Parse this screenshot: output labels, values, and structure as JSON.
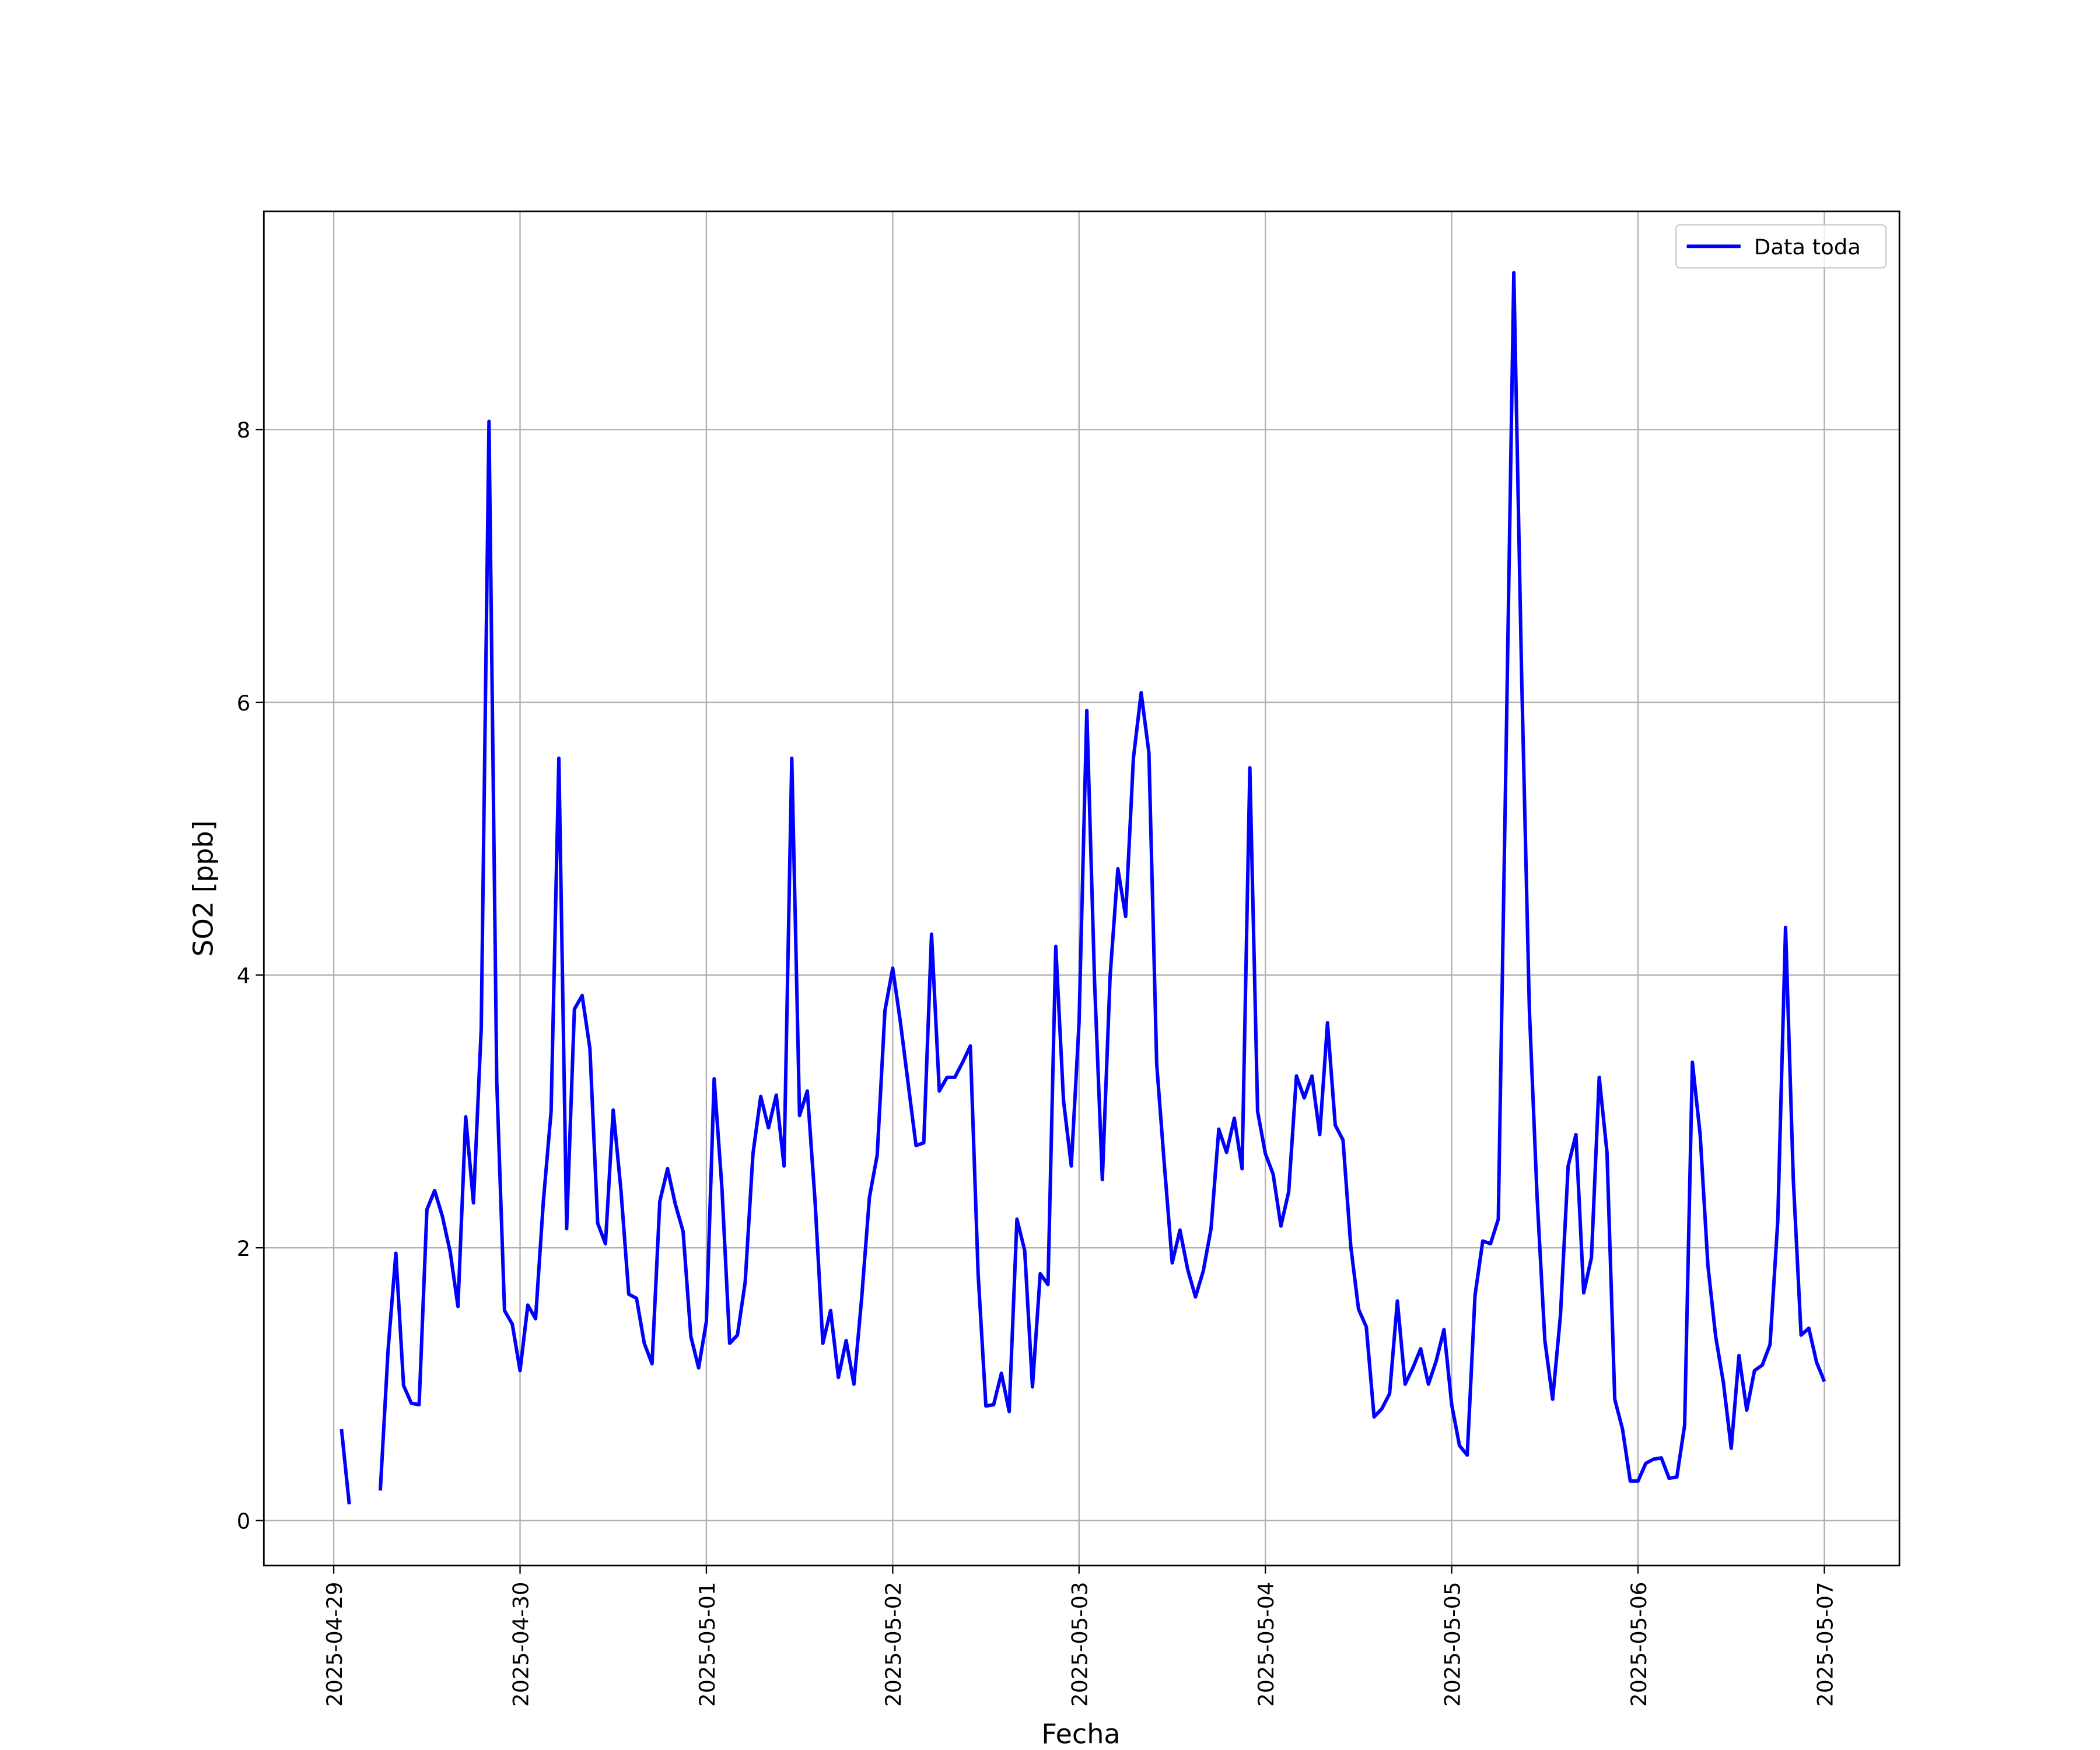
{
  "chart_data": {
    "type": "line",
    "xlabel": "Fecha",
    "ylabel": "SO2 [ppb]",
    "xlim": [
      "2025-04-28 15:00",
      "2025-05-07 09:40"
    ],
    "xticks": [
      "2025-04-29",
      "2025-04-30",
      "2025-05-01",
      "2025-05-02",
      "2025-05-03",
      "2025-05-04",
      "2025-05-05",
      "2025-05-06",
      "2025-05-07"
    ],
    "ylim": [
      -0.33,
      9.6
    ],
    "yticks": [
      0,
      2,
      4,
      6,
      8
    ],
    "grid": true,
    "legend": "upper right",
    "x": [
      "2025-04-29 01:00",
      "2025-04-29 02:00",
      "2025-04-29 03:00",
      "2025-04-29 04:00",
      "2025-04-29 05:00",
      "2025-04-29 06:00",
      "2025-04-29 07:00",
      "2025-04-29 08:00",
      "2025-04-29 09:00",
      "2025-04-29 10:00",
      "2025-04-29 11:00",
      "2025-04-29 12:00",
      "2025-04-29 13:00",
      "2025-04-29 14:00",
      "2025-04-29 15:00",
      "2025-04-29 16:00",
      "2025-04-29 17:00",
      "2025-04-29 18:00",
      "2025-04-29 19:00",
      "2025-04-29 20:00",
      "2025-04-29 21:00",
      "2025-04-29 22:00",
      "2025-04-29 23:00",
      "2025-04-30 00:00",
      "2025-04-30 01:00",
      "2025-04-30 02:00",
      "2025-04-30 03:00",
      "2025-04-30 04:00",
      "2025-04-30 05:00",
      "2025-04-30 06:00",
      "2025-04-30 07:00",
      "2025-04-30 08:00",
      "2025-04-30 09:00",
      "2025-04-30 10:00",
      "2025-04-30 11:00",
      "2025-04-30 12:00",
      "2025-04-30 13:00",
      "2025-04-30 14:00",
      "2025-04-30 15:00",
      "2025-04-30 16:00",
      "2025-04-30 17:00",
      "2025-04-30 18:00",
      "2025-04-30 19:00",
      "2025-04-30 20:00",
      "2025-04-30 21:00",
      "2025-04-30 22:00",
      "2025-04-30 23:00",
      "2025-05-01 00:00",
      "2025-05-01 01:00",
      "2025-05-01 02:00",
      "2025-05-01 03:00",
      "2025-05-01 04:00",
      "2025-05-01 05:00",
      "2025-05-01 06:00",
      "2025-05-01 07:00",
      "2025-05-01 08:00",
      "2025-05-01 09:00",
      "2025-05-01 10:00",
      "2025-05-01 11:00",
      "2025-05-01 12:00",
      "2025-05-01 13:00",
      "2025-05-01 14:00",
      "2025-05-01 15:00",
      "2025-05-01 16:00",
      "2025-05-01 17:00",
      "2025-05-01 18:00",
      "2025-05-01 19:00",
      "2025-05-01 20:00",
      "2025-05-01 21:00",
      "2025-05-01 22:00",
      "2025-05-01 23:00",
      "2025-05-02 00:00",
      "2025-05-02 01:00",
      "2025-05-02 02:00",
      "2025-05-02 03:00",
      "2025-05-02 04:00",
      "2025-05-02 05:00",
      "2025-05-02 06:00",
      "2025-05-02 07:00",
      "2025-05-02 08:00",
      "2025-05-02 09:00",
      "2025-05-02 10:00",
      "2025-05-02 11:00",
      "2025-05-02 12:00",
      "2025-05-02 13:00",
      "2025-05-02 14:00",
      "2025-05-02 15:00",
      "2025-05-02 16:00",
      "2025-05-02 17:00",
      "2025-05-02 18:00",
      "2025-05-02 19:00",
      "2025-05-02 20:00",
      "2025-05-02 21:00",
      "2025-05-02 22:00",
      "2025-05-02 23:00",
      "2025-05-03 00:00",
      "2025-05-03 01:00",
      "2025-05-03 02:00",
      "2025-05-03 03:00",
      "2025-05-03 04:00",
      "2025-05-03 05:00",
      "2025-05-03 06:00",
      "2025-05-03 07:00",
      "2025-05-03 08:00",
      "2025-05-03 09:00",
      "2025-05-03 10:00",
      "2025-05-03 11:00",
      "2025-05-03 12:00",
      "2025-05-03 13:00",
      "2025-05-03 14:00",
      "2025-05-03 15:00",
      "2025-05-03 16:00",
      "2025-05-03 17:00",
      "2025-05-03 18:00",
      "2025-05-03 19:00",
      "2025-05-03 20:00",
      "2025-05-03 21:00",
      "2025-05-03 22:00",
      "2025-05-03 23:00",
      "2025-05-04 00:00",
      "2025-05-04 01:00",
      "2025-05-04 02:00",
      "2025-05-04 03:00",
      "2025-05-04 04:00",
      "2025-05-04 05:00",
      "2025-05-04 06:00",
      "2025-05-04 07:00",
      "2025-05-04 08:00",
      "2025-05-04 09:00",
      "2025-05-04 10:00",
      "2025-05-04 11:00",
      "2025-05-04 12:00",
      "2025-05-04 13:00",
      "2025-05-04 14:00",
      "2025-05-04 15:00",
      "2025-05-04 16:00",
      "2025-05-04 17:00",
      "2025-05-04 18:00",
      "2025-05-04 19:00",
      "2025-05-04 20:00",
      "2025-05-04 21:00",
      "2025-05-04 22:00",
      "2025-05-04 23:00",
      "2025-05-05 00:00",
      "2025-05-05 01:00",
      "2025-05-05 02:00",
      "2025-05-05 03:00",
      "2025-05-05 04:00",
      "2025-05-05 05:00",
      "2025-05-05 06:00",
      "2025-05-05 07:00",
      "2025-05-05 08:00",
      "2025-05-05 09:00",
      "2025-05-05 10:00",
      "2025-05-05 11:00",
      "2025-05-05 12:00",
      "2025-05-05 13:00",
      "2025-05-05 14:00",
      "2025-05-05 15:00",
      "2025-05-05 16:00",
      "2025-05-05 17:00",
      "2025-05-05 18:00",
      "2025-05-05 19:00",
      "2025-05-05 20:00",
      "2025-05-05 21:00",
      "2025-05-05 22:00",
      "2025-05-05 23:00",
      "2025-05-06 00:00",
      "2025-05-06 01:00",
      "2025-05-06 02:00",
      "2025-05-06 03:00",
      "2025-05-06 04:00",
      "2025-05-06 05:00",
      "2025-05-06 06:00",
      "2025-05-06 07:00",
      "2025-05-06 08:00",
      "2025-05-06 09:00",
      "2025-05-06 10:00",
      "2025-05-06 11:00",
      "2025-05-06 12:00",
      "2025-05-06 13:00",
      "2025-05-06 14:00",
      "2025-05-06 15:00",
      "2025-05-06 16:00",
      "2025-05-06 17:00",
      "2025-05-06 18:00",
      "2025-05-06 19:00",
      "2025-05-06 20:00",
      "2025-05-06 21:00",
      "2025-05-06 22:00",
      "2025-05-06 23:00",
      "2025-05-07 00:00"
    ],
    "series": [
      {
        "name": "Data toda",
        "color": "#0000ff",
        "values": [
          0.67,
          0.12,
          null,
          null,
          null,
          0.22,
          1.25,
          1.96,
          0.99,
          0.86,
          0.85,
          2.28,
          2.42,
          2.23,
          1.97,
          1.57,
          2.96,
          2.33,
          3.61,
          8.06,
          3.22,
          1.54,
          1.44,
          1.1,
          1.58,
          1.48,
          2.34,
          3.0,
          5.59,
          2.14,
          3.75,
          3.85,
          3.46,
          2.18,
          2.03,
          3.01,
          2.42,
          1.66,
          1.63,
          1.3,
          1.15,
          2.34,
          2.58,
          2.32,
          2.12,
          1.35,
          1.12,
          1.46,
          3.24,
          2.44,
          1.3,
          1.36,
          1.75,
          2.69,
          3.11,
          2.88,
          3.12,
          2.6,
          5.59,
          2.97,
          3.15,
          2.34,
          1.3,
          1.54,
          1.05,
          1.32,
          1.0,
          1.63,
          2.37,
          2.68,
          3.74,
          4.05,
          3.65,
          3.2,
          2.75,
          2.77,
          4.3,
          3.15,
          3.25,
          3.25,
          3.36,
          3.48,
          1.81,
          0.84,
          0.85,
          1.08,
          0.8,
          2.21,
          1.98,
          0.98,
          1.81,
          1.73,
          4.21,
          3.08,
          2.6,
          3.65,
          5.94,
          3.95,
          2.5,
          3.99,
          4.78,
          4.43,
          5.59,
          6.07,
          5.63,
          3.35,
          2.6,
          1.89,
          2.13,
          1.84,
          1.64,
          1.83,
          2.14,
          2.87,
          2.7,
          2.95,
          2.58,
          5.52,
          3.0,
          2.69,
          2.54,
          2.16,
          2.41,
          3.26,
          3.1,
          3.26,
          2.83,
          3.65,
          2.9,
          2.79,
          2.01,
          1.55,
          1.42,
          0.76,
          0.82,
          0.93,
          1.61,
          1.0,
          1.12,
          1.26,
          1.0,
          1.17,
          1.4,
          0.85,
          0.55,
          0.48,
          1.65,
          2.05,
          2.03,
          2.21,
          5.62,
          9.15,
          6.21,
          3.75,
          2.37,
          1.32,
          0.89,
          1.5,
          2.6,
          2.83,
          1.67,
          1.93,
          3.25,
          2.7,
          0.89,
          0.67,
          0.29,
          0.29,
          0.42,
          0.45,
          0.46,
          0.31,
          0.32,
          0.7,
          3.36,
          2.83,
          1.87,
          1.35,
          1.01,
          0.53,
          1.21,
          0.81,
          1.1,
          1.14,
          1.29,
          2.2,
          4.35,
          2.5,
          1.36,
          1.41,
          1.16,
          1.02
        ]
      }
    ]
  }
}
